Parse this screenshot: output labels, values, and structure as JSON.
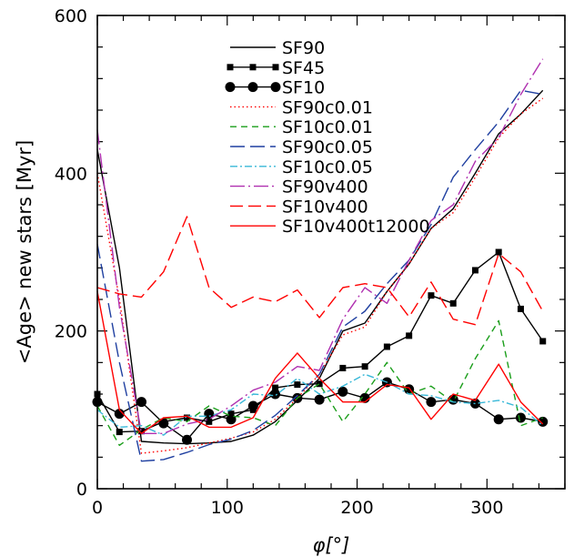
{
  "chart_data": {
    "type": "line",
    "xlabel": "φ[°]",
    "ylabel": "<Age> new stars [Myr]",
    "xlim": [
      0,
      360
    ],
    "ylim": [
      0,
      600
    ],
    "xticks": [
      0,
      100,
      200,
      300
    ],
    "yticks": [
      0,
      200,
      400,
      600
    ],
    "legend_position": "top-center",
    "series": [
      {
        "name": "SF90",
        "color": "#000000",
        "dash": "",
        "marker": "none",
        "x": [
          0,
          17,
          34,
          51,
          69,
          86,
          103,
          120,
          137,
          154,
          171,
          189,
          206,
          223,
          240,
          257,
          274,
          291,
          309,
          326,
          343
        ],
        "y": [
          430,
          280,
          60,
          58,
          57,
          58,
          60,
          68,
          85,
          112,
          140,
          200,
          210,
          250,
          285,
          330,
          355,
          400,
          450,
          475,
          505
        ]
      },
      {
        "name": "SF45",
        "color": "#000000",
        "dash": "",
        "marker": "square",
        "x": [
          0,
          17,
          34,
          51,
          69,
          86,
          103,
          120,
          137,
          154,
          171,
          189,
          206,
          223,
          240,
          257,
          274,
          291,
          309,
          326,
          343
        ],
        "y": [
          120,
          72,
          73,
          85,
          90,
          85,
          95,
          100,
          128,
          132,
          133,
          153,
          155,
          180,
          194,
          245,
          235,
          277,
          300,
          228,
          187
        ]
      },
      {
        "name": "SF10",
        "color": "#000000",
        "dash": "",
        "marker": "circle",
        "x": [
          0,
          17,
          34,
          51,
          69,
          86,
          103,
          120,
          137,
          154,
          171,
          189,
          206,
          223,
          240,
          257,
          274,
          291,
          309,
          326,
          343
        ],
        "y": [
          110,
          95,
          110,
          83,
          62,
          95,
          88,
          105,
          120,
          115,
          113,
          123,
          115,
          135,
          126,
          110,
          113,
          108,
          88,
          90,
          85
        ]
      },
      {
        "name": "SF90c0.01",
        "color": "#ff0000",
        "dash": "1.5 3",
        "marker": "none",
        "x": [
          0,
          17,
          34,
          51,
          69,
          86,
          103,
          120,
          137,
          154,
          171,
          189,
          206,
          223,
          240,
          257,
          274,
          291,
          309,
          326,
          343
        ],
        "y": [
          400,
          240,
          45,
          48,
          52,
          58,
          64,
          72,
          88,
          115,
          145,
          195,
          205,
          250,
          285,
          330,
          350,
          395,
          445,
          475,
          495
        ]
      },
      {
        "name": "SF10c0.01",
        "color": "#1a9e1a",
        "dash": "7 5",
        "marker": "none",
        "x": [
          0,
          17,
          34,
          51,
          69,
          86,
          103,
          120,
          137,
          154,
          171,
          189,
          206,
          223,
          240,
          257,
          274,
          291,
          309,
          326,
          343
        ],
        "y": [
          105,
          55,
          75,
          90,
          85,
          105,
          92,
          90,
          80,
          115,
          133,
          85,
          120,
          160,
          120,
          130,
          110,
          165,
          213,
          80,
          90
        ]
      },
      {
        "name": "SF90c0.05",
        "color": "#1f3fa0",
        "dash": "16 6",
        "marker": "none",
        "x": [
          0,
          17,
          34,
          51,
          69,
          86,
          103,
          120,
          137,
          154,
          171,
          189,
          206,
          223,
          240,
          257,
          274,
          291,
          309,
          326,
          343
        ],
        "y": [
          310,
          160,
          35,
          37,
          46,
          56,
          63,
          74,
          93,
          118,
          145,
          205,
          225,
          260,
          290,
          335,
          395,
          430,
          465,
          505,
          500
        ]
      },
      {
        "name": "SF10c0.05",
        "color": "#38b8d8",
        "dash": "8 3 2 3",
        "marker": "none",
        "x": [
          0,
          17,
          34,
          51,
          69,
          86,
          103,
          120,
          137,
          154,
          171,
          189,
          206,
          223,
          240,
          257,
          274,
          291,
          309,
          326,
          343
        ],
        "y": [
          100,
          78,
          80,
          68,
          92,
          92,
          100,
          120,
          118,
          140,
          120,
          130,
          145,
          135,
          120,
          118,
          110,
          108,
          112,
          103,
          80
        ]
      },
      {
        "name": "SF90v400",
        "color": "#b030b0",
        "dash": "16 4 2 4",
        "marker": "none",
        "x": [
          0,
          17,
          34,
          51,
          69,
          86,
          103,
          120,
          137,
          154,
          171,
          189,
          206,
          223,
          240,
          257,
          274,
          291,
          309,
          326,
          343
        ],
        "y": [
          455,
          230,
          70,
          70,
          82,
          88,
          105,
          125,
          135,
          155,
          150,
          215,
          255,
          235,
          290,
          340,
          360,
          415,
          445,
          500,
          545
        ]
      },
      {
        "name": "SF10v400",
        "color": "#ff0000",
        "dash": "14 6",
        "marker": "none",
        "x": [
          0,
          17,
          34,
          51,
          69,
          86,
          103,
          120,
          137,
          154,
          171,
          189,
          206,
          223,
          240,
          257,
          274,
          291,
          309,
          326,
          343
        ],
        "y": [
          255,
          247,
          243,
          275,
          345,
          255,
          230,
          243,
          237,
          252,
          217,
          255,
          260,
          255,
          218,
          262,
          215,
          208,
          298,
          275,
          225
        ]
      },
      {
        "name": "SF10v400t12000",
        "color": "#ff0000",
        "dash": "",
        "marker": "none",
        "x": [
          0,
          17,
          34,
          51,
          69,
          86,
          103,
          120,
          137,
          154,
          171,
          189,
          206,
          223,
          240,
          257,
          274,
          291,
          309,
          326,
          343
        ],
        "y": [
          250,
          100,
          70,
          90,
          92,
          78,
          78,
          90,
          140,
          172,
          140,
          110,
          110,
          132,
          128,
          88,
          120,
          112,
          158,
          110,
          82
        ]
      }
    ]
  }
}
